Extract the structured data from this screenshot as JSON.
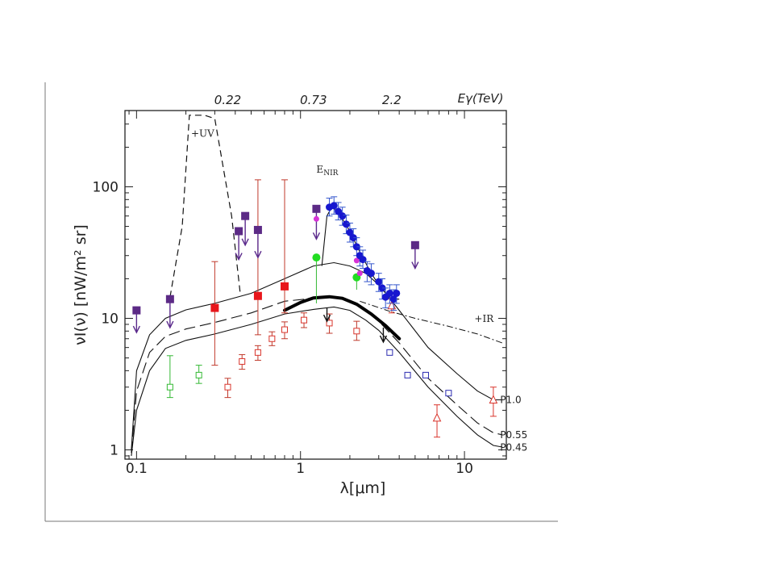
{
  "chart_data": {
    "type": "scatter",
    "xscale": "log",
    "yscale": "log",
    "xlim": [
      0.085,
      18
    ],
    "ylim": [
      0.85,
      380
    ],
    "xlabel": "λ[μm]",
    "ylabel": "νI(ν) [nW/m² sr]",
    "xticks": [
      {
        "value": 0.1,
        "label": "0.1"
      },
      {
        "value": 1,
        "label": "1"
      },
      {
        "value": 10,
        "label": "10"
      }
    ],
    "yticks": [
      {
        "value": 1,
        "label": "1"
      },
      {
        "value": 10,
        "label": "10"
      },
      {
        "value": 100,
        "label": "100"
      }
    ],
    "top_axis": {
      "label": "Eγ(TeV)",
      "ticks": [
        {
          "value": 0.22,
          "label": "0.22",
          "x": 0.36
        },
        {
          "value": 0.73,
          "label": "0.73",
          "x": 1.2
        },
        {
          "value": 2.2,
          "label": "2.2",
          "x": 3.6
        }
      ]
    },
    "annotations": [
      {
        "text": "+UV",
        "x": 0.215,
        "y": 240
      },
      {
        "text": "E_NIR",
        "x": 1.25,
        "y": 128
      },
      {
        "text": "+IR",
        "x": 11.5,
        "y": 9.4
      }
    ],
    "curve_labels": [
      {
        "text": "P1.0",
        "x": 16.5,
        "y": 2.4
      },
      {
        "text": "P0.55",
        "x": 16.5,
        "y": 1.3
      },
      {
        "text": "P0.45",
        "x": 16.5,
        "y": 1.04
      }
    ],
    "series": [
      {
        "style": "solid",
        "x": [
          0.093,
          0.1,
          0.12,
          0.15,
          0.2,
          0.3,
          0.5,
          0.8,
          1.2,
          1.6,
          2.0,
          2.5,
          3.0,
          4.0,
          6.0,
          9.0,
          12.0,
          15.0,
          17.0
        ],
        "y": [
          1.0,
          4.0,
          7.5,
          10.0,
          11.6,
          13.0,
          15.5,
          20.0,
          25.0,
          26.5,
          25.0,
          22.0,
          18.0,
          11.5,
          6.0,
          3.8,
          2.8,
          2.4,
          2.4
        ]
      },
      {
        "style": "dashed",
        "x": [
          0.093,
          0.1,
          0.12,
          0.15,
          0.2,
          0.3,
          0.5,
          0.8,
          1.2,
          1.6,
          2.0,
          2.5,
          3.0,
          4.0,
          6.0,
          9.0,
          12.0,
          15.0,
          17.0
        ],
        "y": [
          0.95,
          2.8,
          5.5,
          7.3,
          8.3,
          9.3,
          11.0,
          13.5,
          14.2,
          14.5,
          13.5,
          11.5,
          9.5,
          6.5,
          3.5,
          2.2,
          1.6,
          1.35,
          1.3
        ]
      },
      {
        "style": "solid",
        "x": [
          0.093,
          0.1,
          0.12,
          0.15,
          0.2,
          0.3,
          0.5,
          0.8,
          1.2,
          1.6,
          2.0,
          2.5,
          3.0,
          4.0,
          6.0,
          9.0,
          12.0,
          15.0,
          17.0
        ],
        "y": [
          0.9,
          2.0,
          4.0,
          5.9,
          6.8,
          7.6,
          9.0,
          10.8,
          11.7,
          12.2,
          11.5,
          9.7,
          8.1,
          5.5,
          3.0,
          1.8,
          1.3,
          1.08,
          1.05
        ]
      },
      {
        "style": "thick",
        "x": [
          0.8,
          1.0,
          1.2,
          1.5,
          1.8,
          2.2,
          2.7,
          3.3,
          4.0
        ],
        "y": [
          11.5,
          13.2,
          14.3,
          14.6,
          14.2,
          12.8,
          10.8,
          8.8,
          7.0
        ]
      },
      {
        "style": "uv-dashed",
        "x": [
          0.16,
          0.19,
          0.21,
          0.26,
          0.3,
          0.38,
          0.43
        ],
        "y": [
          14.5,
          50,
          350,
          350,
          330,
          60,
          15
        ]
      },
      {
        "style": "ir-dashdot",
        "x": [
          2.3,
          3.5,
          5.0,
          8.0,
          12.0,
          17.0
        ],
        "y": [
          13.5,
          11.3,
          10.0,
          8.7,
          7.6,
          6.5
        ]
      },
      {
        "style": "enir-line",
        "x": [
          1.35,
          1.45,
          1.55,
          1.7,
          2.0,
          2.3,
          2.7,
          3.1,
          3.6,
          4.0
        ],
        "y": [
          25,
          60,
          70,
          64,
          46,
          32,
          22,
          17,
          14,
          14
        ]
      },
      {
        "style": "red-squares",
        "x": [
          0.3,
          0.55,
          0.8
        ],
        "y": [
          12.0,
          14.8,
          17.5
        ],
        "err_lo": [
          4.4,
          7.5,
          11.0
        ],
        "err_hi": [
          27.0,
          113.0,
          113.0
        ]
      },
      {
        "style": "red-open-squares",
        "x": [
          0.36,
          0.44,
          0.55,
          0.67,
          0.8,
          1.05,
          1.5,
          2.2
        ],
        "y": [
          3.0,
          4.7,
          5.5,
          7.0,
          8.2,
          9.7,
          9.2,
          8.0
        ],
        "err_lo": [
          2.5,
          4.1,
          4.8,
          6.2,
          7.0,
          8.5,
          7.7,
          6.8
        ],
        "err_hi": [
          3.5,
          5.3,
          6.2,
          7.9,
          9.4,
          11.0,
          10.8,
          9.5
        ]
      },
      {
        "style": "green-open-squares",
        "x": [
          0.16,
          0.24
        ],
        "y": [
          3.0,
          3.7
        ],
        "err_lo": [
          2.5,
          3.2
        ],
        "err_hi": [
          5.2,
          4.4
        ]
      },
      {
        "style": "green-circles",
        "x": [
          1.25,
          2.2
        ],
        "y": [
          29.0,
          20.5
        ],
        "err_lo": [
          13.0,
          16.5
        ],
        "err_hi": [
          29.0,
          20.5
        ]
      },
      {
        "style": "blue-open-squares",
        "x": [
          3.5,
          4.5,
          5.8,
          8.0
        ],
        "y": [
          5.5,
          3.7,
          3.7,
          2.7
        ]
      },
      {
        "style": "red-triangles",
        "x": [
          3.6,
          6.8,
          15.0
        ],
        "y": [
          12.5,
          1.75,
          2.4
        ],
        "err_lo": [
          11.0,
          1.25,
          1.8
        ],
        "err_hi": [
          14.0,
          2.2,
          3.0
        ]
      },
      {
        "style": "purple-upper-limits",
        "x": [
          0.1,
          0.16,
          0.42,
          0.46,
          0.55,
          1.25,
          5.0
        ],
        "y": [
          11.5,
          14.0,
          46.0,
          60.0,
          47.0,
          68.0,
          36.0
        ],
        "arrow_to": [
          7.8,
          8.5,
          28.0,
          36.0,
          29.0,
          40.0,
          24.0
        ]
      },
      {
        "style": "magenta-markers",
        "x": [
          1.25,
          2.2,
          2.3
        ],
        "y": [
          57.0,
          27.5,
          22.0
        ]
      },
      {
        "style": "blue-filled-circles",
        "x": [
          1.5,
          1.6,
          1.7,
          1.8,
          1.9,
          2.0,
          2.1,
          2.2,
          2.3,
          2.4,
          2.55,
          2.7,
          3.0,
          3.15,
          3.3,
          3.5,
          3.7,
          3.85
        ],
        "y": [
          70,
          72,
          65,
          60,
          52,
          45,
          41,
          35,
          30,
          28,
          23,
          22,
          19,
          17,
          14.5,
          15.5,
          14,
          15.5
        ],
        "err_lo": [
          60,
          62,
          56,
          51,
          44,
          38,
          35,
          30,
          25,
          24,
          19,
          18,
          16,
          14,
          12,
          13,
          11.5,
          13
        ],
        "err_hi": [
          82,
          84,
          76,
          70,
          61,
          53,
          48,
          41,
          35,
          33,
          27,
          26,
          22,
          20,
          17,
          18,
          16.5,
          18
        ]
      },
      {
        "style": "curve-arrows",
        "x": [
          1.45,
          3.2
        ],
        "y": [
          12.0,
          8.5
        ],
        "arrow_to": [
          9.5,
          6.6
        ]
      }
    ]
  }
}
